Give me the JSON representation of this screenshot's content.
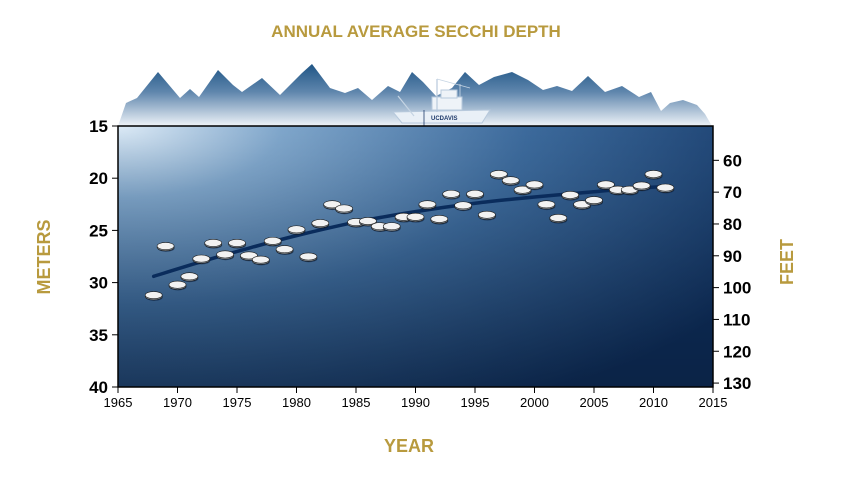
{
  "chart_data": {
    "type": "scatter",
    "title": "ANNUAL AVERAGE SECCHI DEPTH",
    "xlabel": "YEAR",
    "ylabel_left": "METERS",
    "ylabel_right": "FEET",
    "xlim": [
      1965,
      2015
    ],
    "ylim_meters": [
      15,
      40
    ],
    "y_inverted": true,
    "xticks": [
      1965,
      1970,
      1975,
      1980,
      1985,
      1990,
      1995,
      2000,
      2005,
      2010,
      2015
    ],
    "yticks_meters": [
      15,
      20,
      25,
      30,
      35,
      40
    ],
    "yticks_feet": [
      60,
      70,
      80,
      90,
      100,
      110,
      120,
      130
    ],
    "grid": false,
    "series": [
      {
        "values": [
          [
            1968,
            31.2
          ],
          [
            1969,
            26.5
          ],
          [
            1970,
            30.2
          ],
          [
            1971,
            29.4
          ],
          [
            1972,
            27.7
          ],
          [
            1973,
            26.2
          ],
          [
            1974,
            27.3
          ],
          [
            1975,
            26.2
          ],
          [
            1976,
            27.4
          ],
          [
            1977,
            27.8
          ],
          [
            1978,
            26.0
          ],
          [
            1979,
            26.8
          ],
          [
            1980,
            24.9
          ],
          [
            1981,
            27.5
          ],
          [
            1982,
            24.3
          ],
          [
            1983,
            22.5
          ],
          [
            1984,
            22.9
          ],
          [
            1985,
            24.2
          ],
          [
            1986,
            24.1
          ],
          [
            1987,
            24.6
          ],
          [
            1988,
            24.6
          ],
          [
            1989,
            23.7
          ],
          [
            1990,
            23.7
          ],
          [
            1991,
            22.5
          ],
          [
            1992,
            23.9
          ],
          [
            1993,
            21.5
          ],
          [
            1994,
            22.6
          ],
          [
            1995,
            21.5
          ],
          [
            1996,
            23.5
          ],
          [
            1997,
            19.6
          ],
          [
            1998,
            20.2
          ],
          [
            1999,
            21.1
          ],
          [
            2000,
            20.6
          ],
          [
            2001,
            22.5
          ],
          [
            2002,
            23.8
          ],
          [
            2003,
            21.6
          ],
          [
            2004,
            22.5
          ],
          [
            2005,
            22.1
          ],
          [
            2006,
            20.6
          ],
          [
            2007,
            21.1
          ],
          [
            2008,
            21.1
          ],
          [
            2009,
            20.7
          ],
          [
            2010,
            19.6
          ],
          [
            2011,
            20.9
          ]
        ]
      },
      {
        "type": "trend-curve",
        "values": [
          [
            1968,
            29.4
          ],
          [
            1972,
            28.0
          ],
          [
            1976,
            26.7
          ],
          [
            1980,
            25.5
          ],
          [
            1985,
            24.2
          ],
          [
            1990,
            23.2
          ],
          [
            1995,
            22.4
          ],
          [
            2000,
            21.8
          ],
          [
            2005,
            21.3
          ],
          [
            2008,
            21.0
          ],
          [
            2011,
            20.8
          ]
        ]
      }
    ]
  },
  "colors": {
    "title": "#B89A3E",
    "plot_top_left": "#d6e6f4",
    "plot_mid": "#3f6b9f",
    "plot_bottom": "#0c2a5a",
    "trend": "#0a2c5c",
    "disc_fill": "#f2f2f2",
    "mountain_dark": "#2d5d8e",
    "mountain_light": "#e8eef5"
  },
  "boat": {
    "label": "UCDAVIS"
  }
}
